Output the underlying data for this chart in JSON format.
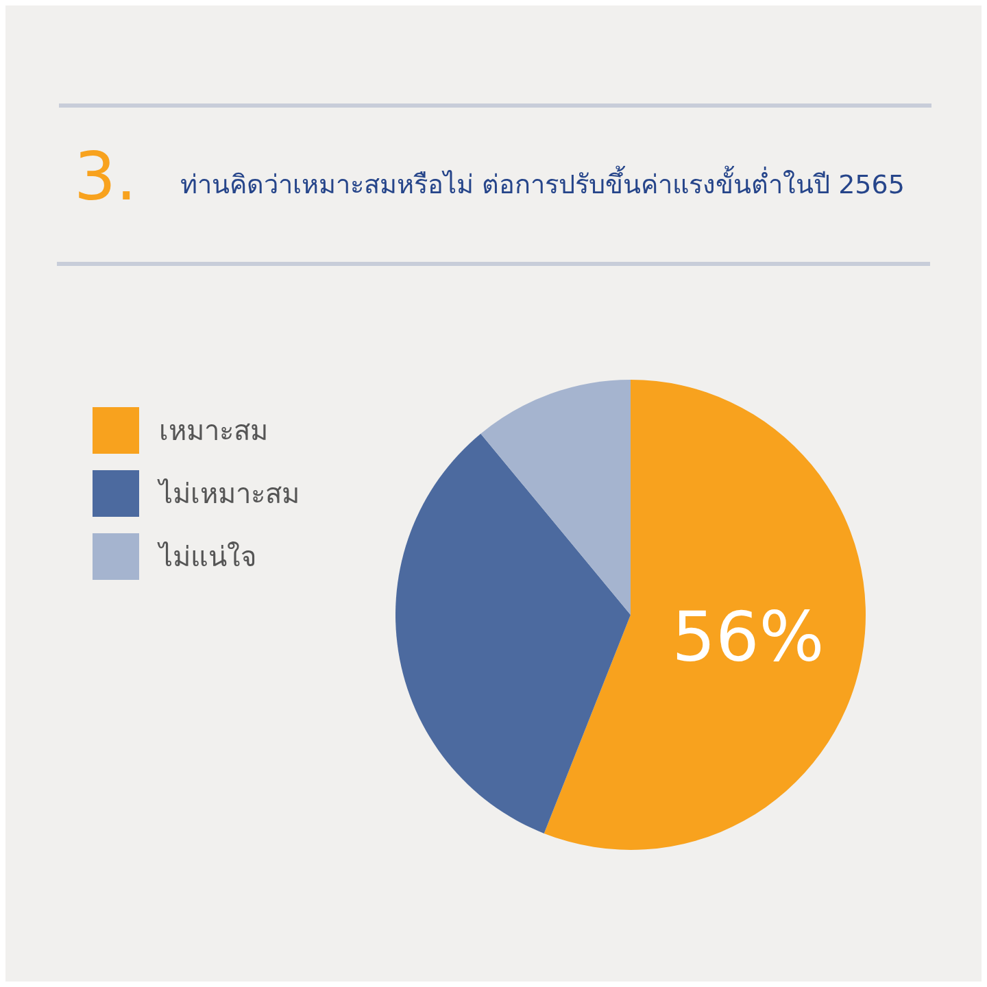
{
  "chart_data": {
    "type": "pie",
    "title": "ท่านคิดว่าเหมาะสมหรือไม่ ต่อการปรับขึ้นค่าแรงขั้นต่ำในปี 2565",
    "annotations": [
      "3."
    ],
    "categories": [
      "เหมาะสม",
      "ไม่เหมาะสม",
      "ไม่แน่ใจ"
    ],
    "values": [
      56,
      33,
      11
    ],
    "colors": [
      "#f8a21e",
      "#4c6a9f",
      "#a5b4cf"
    ],
    "value_labels": [
      "56%",
      null,
      null
    ],
    "legend": "left"
  }
}
